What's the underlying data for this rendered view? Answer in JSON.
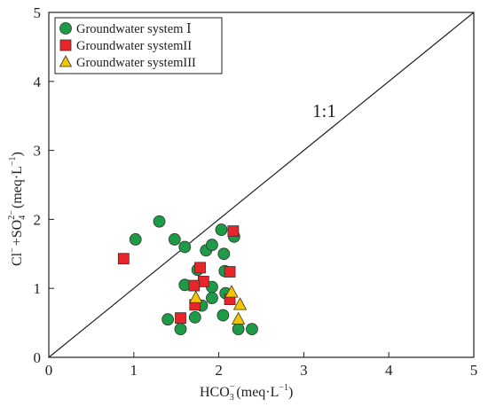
{
  "chart_data": {
    "type": "scatter",
    "xlim": [
      0,
      5
    ],
    "ylim": [
      0,
      5
    ],
    "x_ticks": [
      "0",
      "1",
      "2",
      "3",
      "4",
      "5"
    ],
    "y_ticks": [
      "0",
      "1",
      "2",
      "3",
      "4",
      "5"
    ],
    "xlabel_main": "HCO",
    "xlabel_sub": "3",
    "xlabel_sup": "−",
    "xlabel_unit": "(meq·L",
    "xlabel_unit_sup": "−1",
    "xlabel_close": ")",
    "ylabel_a": "Cl",
    "ylabel_a_sup": "−",
    "ylabel_b": "+SO",
    "ylabel_b_sub": "4",
    "ylabel_b_sup": "2−",
    "ylabel_unit": "(meq·L",
    "ylabel_unit_sup": "−1",
    "ylabel_close": ")",
    "reference_line": {
      "from": [
        0,
        0
      ],
      "to": [
        5,
        5
      ],
      "label": "1:1",
      "label_at": [
        3.15,
        2.9
      ]
    },
    "legend_position": "top-left",
    "colors": {
      "system1": "#1e9b46",
      "system2": "#e8262a",
      "system3": "#f2c500",
      "stroke": "#333333",
      "axis": "#222222"
    },
    "series": [
      {
        "name": "Groundwater system Ⅰ",
        "marker": "circle",
        "points": [
          [
            1.02,
            1.71
          ],
          [
            1.3,
            1.97
          ],
          [
            1.48,
            1.71
          ],
          [
            1.6,
            1.6
          ],
          [
            1.6,
            1.05
          ],
          [
            1.85,
            1.55
          ],
          [
            1.92,
            1.63
          ],
          [
            2.03,
            1.85
          ],
          [
            2.06,
            1.5
          ],
          [
            2.18,
            1.75
          ],
          [
            1.75,
            1.27
          ],
          [
            2.07,
            1.25
          ],
          [
            1.92,
            1.02
          ],
          [
            1.92,
            0.86
          ],
          [
            2.08,
            0.93
          ],
          [
            1.8,
            0.75
          ],
          [
            1.72,
            0.58
          ],
          [
            1.4,
            0.55
          ],
          [
            1.55,
            0.41
          ],
          [
            2.05,
            0.61
          ],
          [
            2.23,
            0.41
          ],
          [
            2.39,
            0.41
          ]
        ]
      },
      {
        "name": "Groundwater systemII",
        "marker": "square",
        "points": [
          [
            0.88,
            1.43
          ],
          [
            2.17,
            1.83
          ],
          [
            1.78,
            1.3
          ],
          [
            1.82,
            1.1
          ],
          [
            1.71,
            1.04
          ],
          [
            2.13,
            1.24
          ],
          [
            1.72,
            0.76
          ],
          [
            1.55,
            0.57
          ],
          [
            2.13,
            0.84
          ]
        ]
      },
      {
        "name": "Groundwater systemIII",
        "marker": "triangle",
        "points": [
          [
            1.73,
            0.87
          ],
          [
            2.15,
            0.95
          ],
          [
            2.25,
            0.77
          ],
          [
            2.23,
            0.56
          ]
        ]
      }
    ]
  }
}
